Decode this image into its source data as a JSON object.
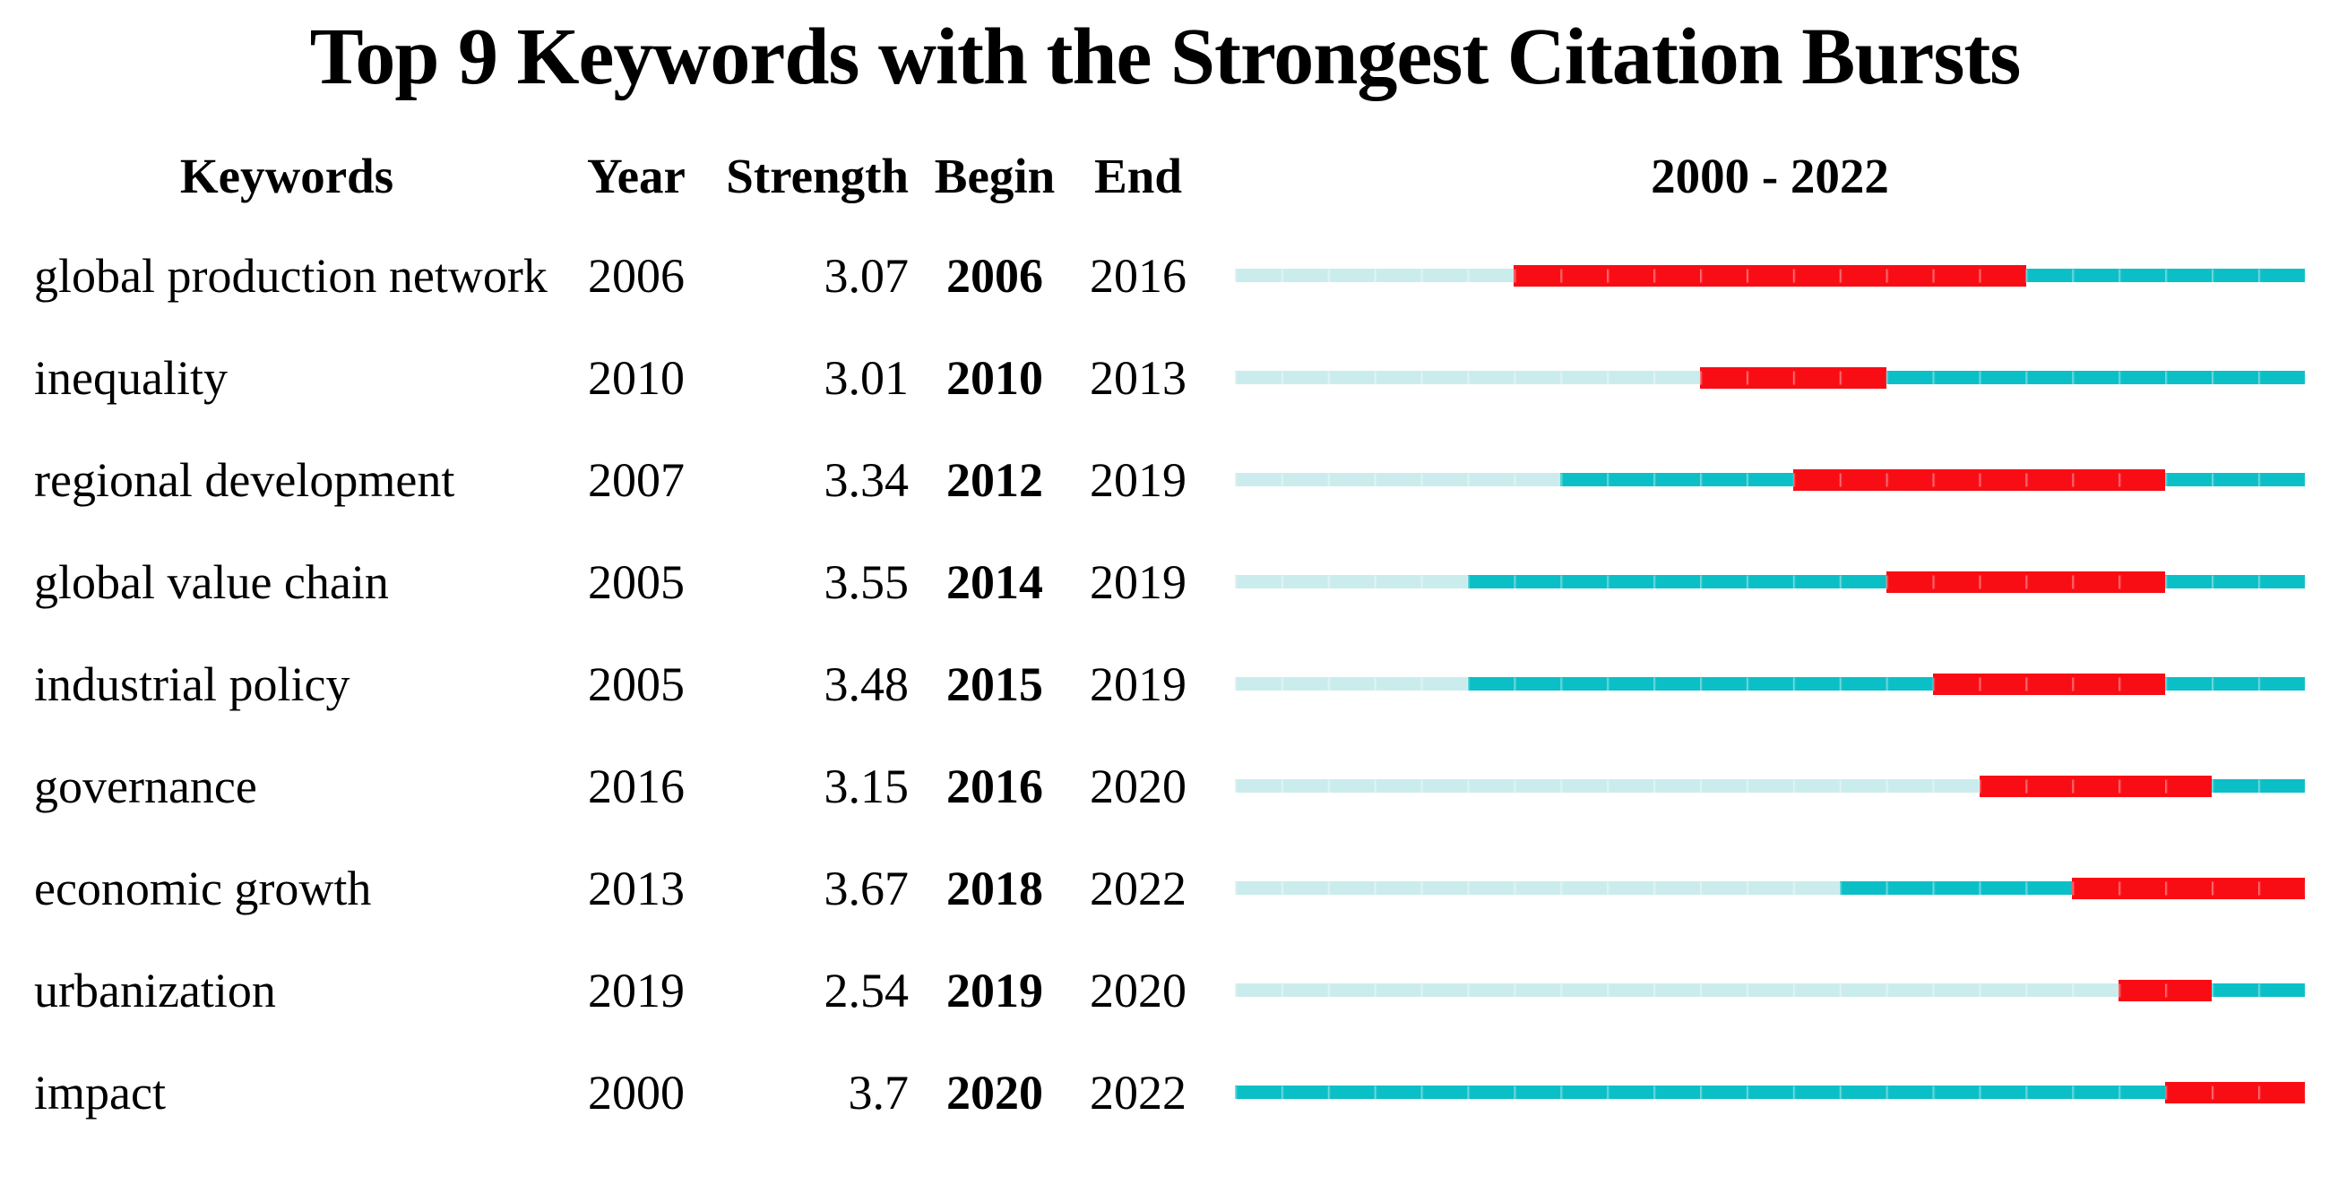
{
  "title": "Top 9 Keywords with the Strongest Citation Bursts",
  "columns": {
    "keyword": "Keywords",
    "year": "Year",
    "strength": "Strength",
    "begin": "Begin",
    "end": "End",
    "timeline": "2000 - 2022"
  },
  "colors": {
    "burst_red": "#f90d15",
    "active_teal": "#0bbfc6",
    "inactive_light": "#cbecec"
  },
  "chart_data": {
    "type": "bar",
    "subtype": "citation-burst-timeline",
    "title": "Top 9 Keywords with the Strongest Citation Bursts",
    "timeline": {
      "start": 2000,
      "end": 2022,
      "label": "2000 - 2022"
    },
    "legend_note": "light segment = before first appearance year, teal = active period, red = burst period (begin..end inclusive)",
    "rows": [
      {
        "keyword": "global production network",
        "year": 2006,
        "strength": 3.07,
        "begin": 2006,
        "end": 2016
      },
      {
        "keyword": "inequality",
        "year": 2010,
        "strength": 3.01,
        "begin": 2010,
        "end": 2013
      },
      {
        "keyword": "regional development",
        "year": 2007,
        "strength": 3.34,
        "begin": 2012,
        "end": 2019
      },
      {
        "keyword": "global value chain",
        "year": 2005,
        "strength": 3.55,
        "begin": 2014,
        "end": 2019
      },
      {
        "keyword": "industrial policy",
        "year": 2005,
        "strength": 3.48,
        "begin": 2015,
        "end": 2019
      },
      {
        "keyword": "governance",
        "year": 2016,
        "strength": 3.15,
        "begin": 2016,
        "end": 2020
      },
      {
        "keyword": "economic growth",
        "year": 2013,
        "strength": 3.67,
        "begin": 2018,
        "end": 2022
      },
      {
        "keyword": "urbanization",
        "year": 2019,
        "strength": 2.54,
        "begin": 2019,
        "end": 2020
      },
      {
        "keyword": "impact",
        "year": 2000,
        "strength": 3.7,
        "begin": 2020,
        "end": 2022
      }
    ]
  }
}
